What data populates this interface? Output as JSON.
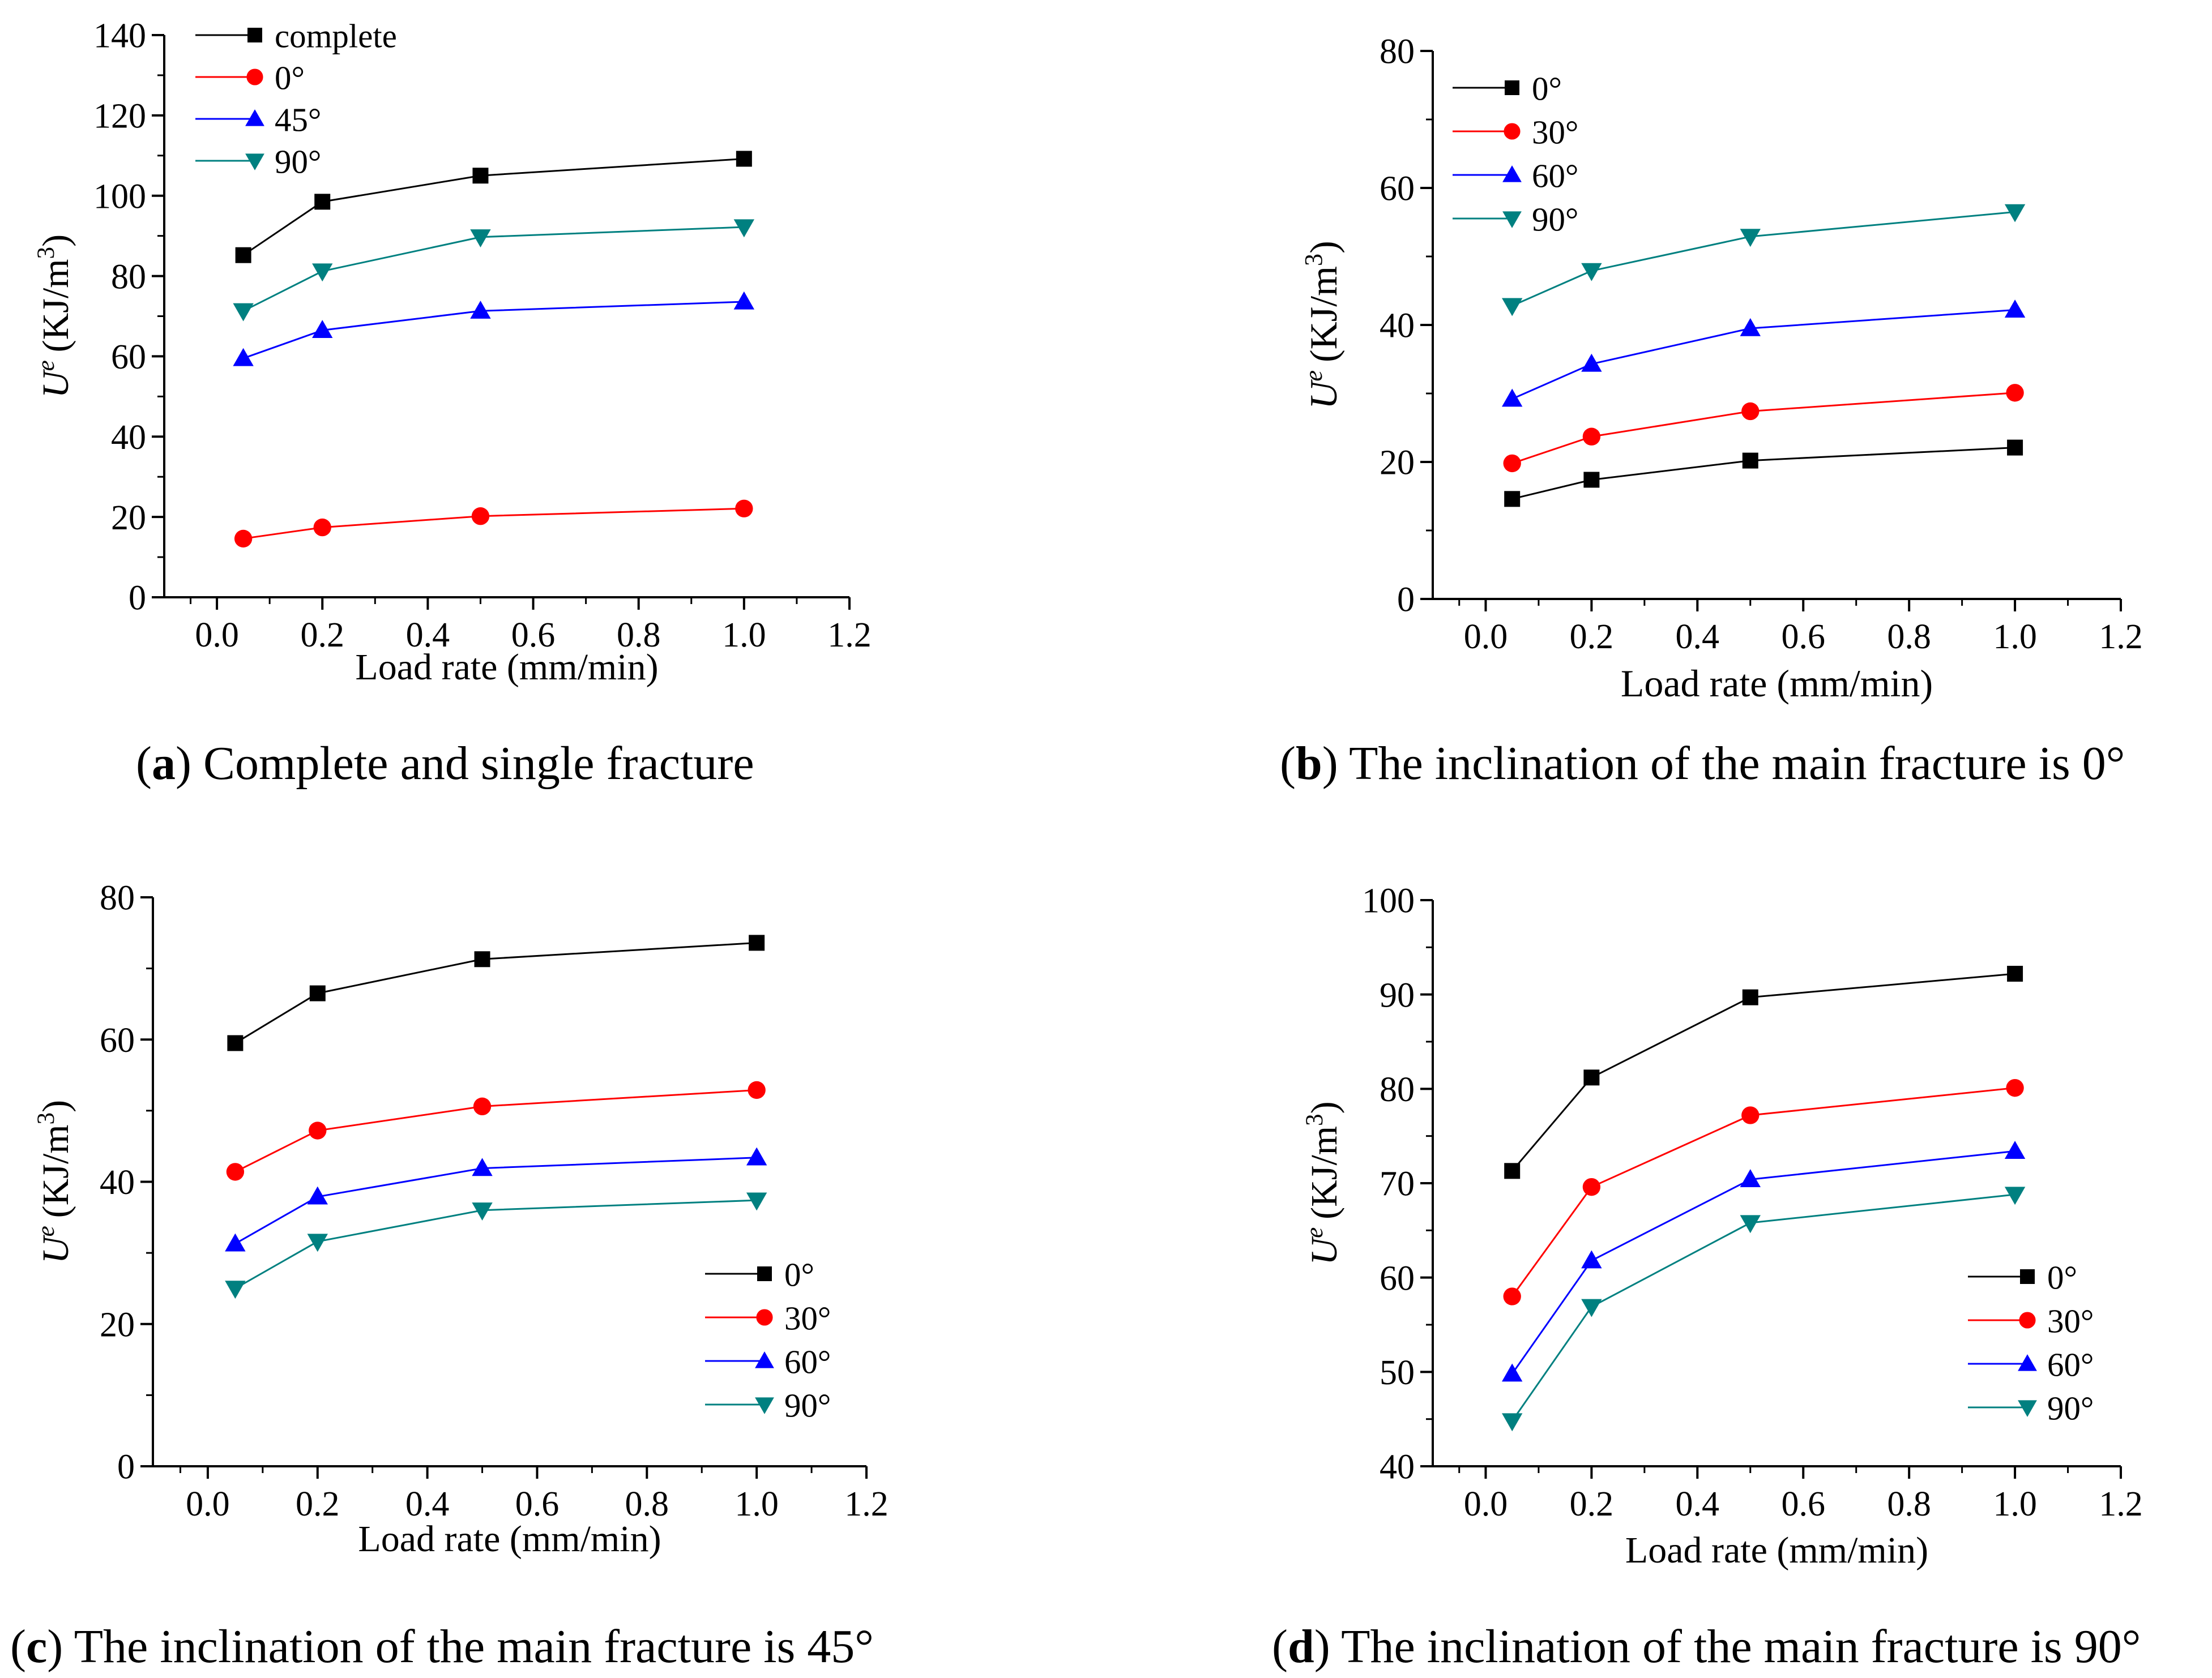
{
  "chart_data": [
    {
      "type": "line",
      "panel": "a",
      "caption_letter": "a",
      "caption_text": "Complete and single fracture",
      "xlabel": "Load rate (mm/min)",
      "ylabel": "U",
      "ylabel_sup": "e",
      "ylabel_unit": "(KJ/m",
      "ylabel_unit_sup": "3",
      "ylabel_close": ")",
      "xlim": [
        -0.1,
        1.2
      ],
      "ylim": [
        0,
        140
      ],
      "xticks": [
        "0.0",
        "0.2",
        "0.4",
        "0.6",
        "0.8",
        "1.0",
        "1.2"
      ],
      "yticks": [
        "0",
        "20",
        "40",
        "60",
        "80",
        "100",
        "120",
        "140"
      ],
      "legend_position": "top-left",
      "x": [
        0.05,
        0.2,
        0.5,
        1.0
      ],
      "series": [
        {
          "name": "complete",
          "color": "#000000",
          "marker": "square",
          "values": [
            85.2,
            98.5,
            105.0,
            109.2
          ]
        },
        {
          "name": "0°",
          "color": "#ff0000",
          "marker": "circle",
          "values": [
            14.6,
            17.4,
            20.2,
            22.1
          ]
        },
        {
          "name": "45°",
          "color": "#0000ff",
          "marker": "triangle-up",
          "values": [
            59.5,
            66.5,
            71.3,
            73.6
          ]
        },
        {
          "name": "90°",
          "color": "#008080",
          "marker": "triangle-down",
          "values": [
            71.3,
            81.2,
            89.7,
            92.2
          ]
        }
      ]
    },
    {
      "type": "line",
      "panel": "b",
      "caption_letter": "b",
      "caption_text": "The inclination of the main fracture is 0°",
      "xlabel": "Load rate (mm/min)",
      "ylabel": "U",
      "ylabel_sup": "e",
      "ylabel_unit": "(KJ/m",
      "ylabel_unit_sup": "3",
      "ylabel_close": ")",
      "xlim": [
        -0.1,
        1.2
      ],
      "ylim": [
        0,
        80
      ],
      "xticks": [
        "0.0",
        "0.2",
        "0.4",
        "0.6",
        "0.8",
        "1.0",
        "1.2"
      ],
      "yticks": [
        "0",
        "20",
        "40",
        "60",
        "80"
      ],
      "legend_position": "top-left",
      "x": [
        0.05,
        0.2,
        0.5,
        1.0
      ],
      "series": [
        {
          "name": "0°",
          "color": "#000000",
          "marker": "square",
          "values": [
            14.6,
            17.4,
            20.2,
            22.1
          ]
        },
        {
          "name": "30°",
          "color": "#ff0000",
          "marker": "circle",
          "values": [
            19.8,
            23.7,
            27.4,
            30.1
          ]
        },
        {
          "name": "60°",
          "color": "#0000ff",
          "marker": "triangle-up",
          "values": [
            29.2,
            34.3,
            39.5,
            42.2
          ]
        },
        {
          "name": "90°",
          "color": "#008080",
          "marker": "triangle-down",
          "values": [
            42.8,
            47.9,
            52.9,
            56.5
          ]
        }
      ]
    },
    {
      "type": "line",
      "panel": "c",
      "caption_letter": "c",
      "caption_text": "The inclination of the main fracture is 45°",
      "xlabel": "Load rate (mm/min)",
      "ylabel": "U",
      "ylabel_sup": "e",
      "ylabel_unit": "(KJ/m",
      "ylabel_unit_sup": "3",
      "ylabel_close": ")",
      "xlim": [
        -0.1,
        1.2
      ],
      "ylim": [
        0,
        80
      ],
      "xticks": [
        "0.0",
        "0.2",
        "0.4",
        "0.6",
        "0.8",
        "1.0",
        "1.2"
      ],
      "yticks": [
        "0",
        "20",
        "40",
        "60",
        "80"
      ],
      "legend_position": "bottom-right",
      "x": [
        0.05,
        0.2,
        0.5,
        1.0
      ],
      "series": [
        {
          "name": "0°",
          "color": "#000000",
          "marker": "square",
          "values": [
            59.5,
            66.5,
            71.3,
            73.6
          ]
        },
        {
          "name": "30°",
          "color": "#ff0000",
          "marker": "circle",
          "values": [
            41.4,
            47.2,
            50.6,
            52.9
          ]
        },
        {
          "name": "60°",
          "color": "#0000ff",
          "marker": "triangle-up",
          "values": [
            31.3,
            37.9,
            41.9,
            43.4
          ]
        },
        {
          "name": "90°",
          "color": "#008080",
          "marker": "triangle-down",
          "values": [
            25.0,
            31.6,
            36.0,
            37.4
          ]
        }
      ]
    },
    {
      "type": "line",
      "panel": "d",
      "caption_letter": "d",
      "caption_text": "The inclination of the main fracture is 90°",
      "xlabel": "Load rate (mm/min)",
      "ylabel": "U",
      "ylabel_sup": "e",
      "ylabel_unit": "(KJ/m",
      "ylabel_unit_sup": "3",
      "ylabel_close": ")",
      "xlim": [
        -0.1,
        1.2
      ],
      "ylim": [
        40,
        100
      ],
      "xticks": [
        "0.0",
        "0.2",
        "0.4",
        "0.6",
        "0.8",
        "1.0",
        "1.2"
      ],
      "yticks": [
        "40",
        "50",
        "60",
        "70",
        "80",
        "90",
        "100"
      ],
      "legend_position": "bottom-right",
      "x": [
        0.05,
        0.2,
        0.5,
        1.0
      ],
      "series": [
        {
          "name": "0°",
          "color": "#000000",
          "marker": "square",
          "values": [
            71.3,
            81.2,
            89.7,
            92.2
          ]
        },
        {
          "name": "30°",
          "color": "#ff0000",
          "marker": "circle",
          "values": [
            58.0,
            69.6,
            77.2,
            80.1
          ]
        },
        {
          "name": "60°",
          "color": "#0000ff",
          "marker": "triangle-up",
          "values": [
            49.8,
            61.8,
            70.4,
            73.4
          ]
        },
        {
          "name": "90°",
          "color": "#008080",
          "marker": "triangle-down",
          "values": [
            44.8,
            56.9,
            65.8,
            68.8
          ]
        }
      ]
    }
  ]
}
